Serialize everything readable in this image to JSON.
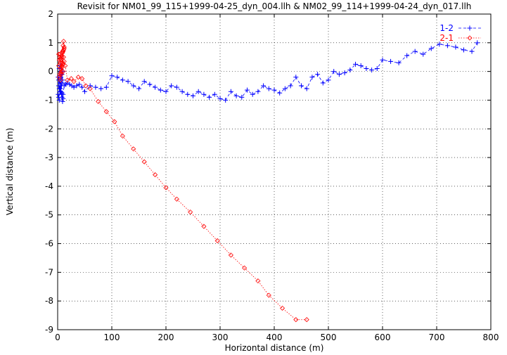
{
  "chart_data": {
    "type": "line",
    "title": "Revisit for NM01_99_115+1999-04-25_dyn_004.llh & NM02_99_114+1999-04-24_dyn_017.llh",
    "xlabel": "Horizontal distance (m)",
    "ylabel": "Vertical distance (m)",
    "xlim": [
      0,
      800
    ],
    "ylim": [
      -9,
      2
    ],
    "xticks": [
      0,
      100,
      200,
      300,
      400,
      500,
      600,
      700,
      800
    ],
    "yticks": [
      -9,
      -8,
      -7,
      -6,
      -5,
      -4,
      -3,
      -2,
      -1,
      0,
      1,
      2
    ],
    "xtick_labels": [
      "0",
      "100",
      "200",
      "300",
      "400",
      "500",
      "600",
      "700",
      "800"
    ],
    "ytick_labels": [
      "-9",
      "-8",
      "-7",
      "-6",
      "-5",
      "-4",
      "-3",
      "-2",
      "-1",
      "0",
      "1",
      "2"
    ],
    "grid": true,
    "legend_position": "top-right",
    "series": [
      {
        "name": "1-2",
        "color": "#0000ff",
        "marker": "plus",
        "line": "dashed",
        "x": [
          1,
          2,
          3,
          4,
          5,
          6,
          7,
          8,
          9,
          10,
          2,
          4,
          6,
          8,
          10,
          3,
          5,
          7,
          9,
          1,
          3,
          5,
          7,
          9,
          2,
          4,
          6,
          8,
          10,
          12,
          15,
          18,
          22,
          26,
          30,
          35,
          40,
          45,
          50,
          60,
          70,
          80,
          90,
          100,
          110,
          120,
          130,
          140,
          150,
          160,
          170,
          180,
          190,
          200,
          210,
          220,
          230,
          240,
          250,
          260,
          270,
          280,
          290,
          300,
          310,
          320,
          330,
          340,
          350,
          360,
          370,
          380,
          390,
          400,
          410,
          420,
          430,
          440,
          450,
          460,
          470,
          480,
          490,
          500,
          510,
          520,
          530,
          540,
          550,
          560,
          570,
          580,
          590,
          600,
          615,
          630,
          645,
          660,
          675,
          690,
          705,
          720,
          735,
          750,
          765,
          775
        ],
        "y": [
          -0.8,
          -0.9,
          -1.0,
          -0.7,
          -0.6,
          -0.5,
          -0.8,
          -0.9,
          -1.05,
          -0.95,
          -0.3,
          -0.4,
          -0.2,
          -0.1,
          0.0,
          -0.6,
          -0.7,
          -0.5,
          -0.4,
          -0.2,
          0.1,
          0.2,
          -0.1,
          -0.3,
          -0.5,
          -0.6,
          -0.7,
          -0.75,
          -0.8,
          -0.5,
          -0.45,
          -0.4,
          -0.45,
          -0.5,
          -0.55,
          -0.5,
          -0.45,
          -0.55,
          -0.7,
          -0.5,
          -0.55,
          -0.6,
          -0.55,
          -0.15,
          -0.2,
          -0.3,
          -0.35,
          -0.5,
          -0.6,
          -0.35,
          -0.45,
          -0.55,
          -0.65,
          -0.7,
          -0.5,
          -0.55,
          -0.7,
          -0.8,
          -0.85,
          -0.7,
          -0.8,
          -0.9,
          -0.8,
          -0.95,
          -1.0,
          -0.7,
          -0.85,
          -0.9,
          -0.65,
          -0.8,
          -0.7,
          -0.5,
          -0.6,
          -0.65,
          -0.75,
          -0.6,
          -0.5,
          -0.2,
          -0.5,
          -0.6,
          -0.2,
          -0.1,
          -0.4,
          -0.3,
          0.0,
          -0.1,
          -0.05,
          0.05,
          0.25,
          0.2,
          0.1,
          0.05,
          0.1,
          0.4,
          0.35,
          0.3,
          0.55,
          0.7,
          0.6,
          0.8,
          0.95,
          0.9,
          0.85,
          0.75,
          0.7,
          1.0
        ]
      },
      {
        "name": "2-1",
        "color": "#ff0000",
        "marker": "diamond",
        "line": "dotted",
        "x": [
          2,
          3,
          4,
          5,
          6,
          7,
          8,
          9,
          10,
          11,
          12,
          3,
          5,
          7,
          9,
          11,
          2,
          4,
          6,
          8,
          10,
          4,
          6,
          8,
          10,
          12,
          5,
          7,
          9,
          11,
          6,
          8,
          10,
          12,
          14,
          18,
          25,
          30,
          38,
          45,
          52,
          60,
          75,
          90,
          105,
          120,
          140,
          160,
          180,
          200,
          220,
          245,
          270,
          295,
          320,
          345,
          370,
          390,
          415,
          440,
          460
        ],
        "y": [
          0.2,
          0.4,
          0.6,
          0.3,
          0.1,
          -0.1,
          0.5,
          0.7,
          0.9,
          1.05,
          0.8,
          -0.2,
          -0.3,
          0.0,
          0.3,
          0.5,
          0.6,
          0.5,
          0.4,
          0.2,
          0.0,
          -0.1,
          0.1,
          0.3,
          0.7,
          0.85,
          0.45,
          0.55,
          0.65,
          0.75,
          -0.05,
          0.15,
          0.25,
          0.35,
          0.2,
          -0.3,
          -0.25,
          -0.35,
          -0.2,
          -0.25,
          -0.5,
          -0.6,
          -1.05,
          -1.4,
          -1.75,
          -2.25,
          -2.7,
          -3.15,
          -3.6,
          -4.05,
          -4.45,
          -4.9,
          -5.4,
          -5.9,
          -6.4,
          -6.85,
          -7.3,
          -7.8,
          -8.25,
          -8.65,
          -8.65
        ]
      }
    ]
  }
}
